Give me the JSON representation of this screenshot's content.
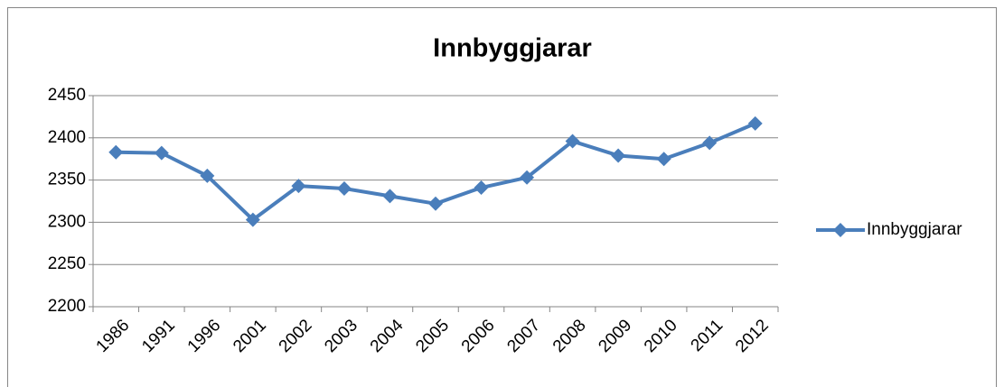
{
  "chart_data": {
    "type": "line",
    "title": "Innbyggjarar",
    "categories": [
      "1986",
      "1991",
      "1996",
      "2001",
      "2002",
      "2003",
      "2004",
      "2005",
      "2006",
      "2007",
      "2008",
      "2009",
      "2010",
      "2011",
      "2012"
    ],
    "series": [
      {
        "name": "Innbyggjarar",
        "color": "#4a7ebb",
        "values": [
          2383,
          2382,
          2355,
          2303,
          2343,
          2340,
          2331,
          2322,
          2341,
          2353,
          2396,
          2379,
          2375,
          2394,
          2417
        ]
      }
    ],
    "ylim": [
      2200,
      2450
    ],
    "yticks": [
      2200,
      2250,
      2300,
      2350,
      2400,
      2450
    ],
    "grid": true,
    "legend": "right"
  }
}
